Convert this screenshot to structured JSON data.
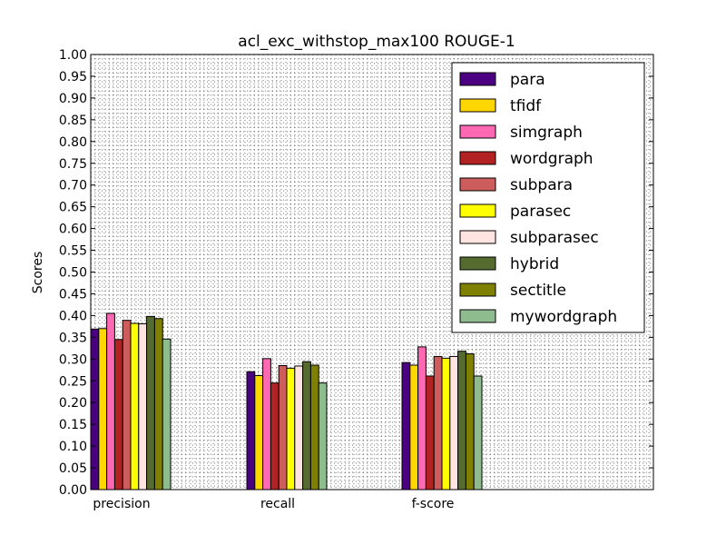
{
  "chart_data": {
    "type": "bar",
    "title": "acl_exc_withstop_max100 ROUGE-1",
    "xlabel": "",
    "ylabel": "Scores",
    "ylim": [
      0,
      1.0
    ],
    "yticks": [
      "0.00",
      "0.05",
      "0.10",
      "0.15",
      "0.20",
      "0.25",
      "0.30",
      "0.35",
      "0.40",
      "0.45",
      "0.50",
      "0.55",
      "0.60",
      "0.65",
      "0.70",
      "0.75",
      "0.80",
      "0.85",
      "0.90",
      "0.95",
      "1.00"
    ],
    "categories": [
      "precision",
      "recall",
      "f-score"
    ],
    "grid": true,
    "legend_position": "top-right",
    "series": [
      {
        "name": "para",
        "color": "#4b0082",
        "values": [
          0.369,
          0.271,
          0.292
        ]
      },
      {
        "name": "tfidf",
        "color": "#ffd700",
        "values": [
          0.37,
          0.262,
          0.286
        ]
      },
      {
        "name": "simgraph",
        "color": "#ff69b4",
        "values": [
          0.405,
          0.301,
          0.328
        ]
      },
      {
        "name": "wordgraph",
        "color": "#b22222",
        "values": [
          0.345,
          0.245,
          0.261
        ]
      },
      {
        "name": "subpara",
        "color": "#cd5c5c",
        "values": [
          0.389,
          0.285,
          0.306
        ]
      },
      {
        "name": "parasec",
        "color": "#ffff00",
        "values": [
          0.382,
          0.279,
          0.302
        ]
      },
      {
        "name": "subparasec",
        "color": "#ffe4e1",
        "values": [
          0.381,
          0.284,
          0.306
        ]
      },
      {
        "name": "hybrid",
        "color": "#556b2f",
        "values": [
          0.398,
          0.294,
          0.318
        ]
      },
      {
        "name": "sectitle",
        "color": "#808000",
        "values": [
          0.393,
          0.286,
          0.312
        ]
      },
      {
        "name": "mywordgraph",
        "color": "#8fbc8f",
        "values": [
          0.346,
          0.245,
          0.261
        ]
      }
    ]
  }
}
